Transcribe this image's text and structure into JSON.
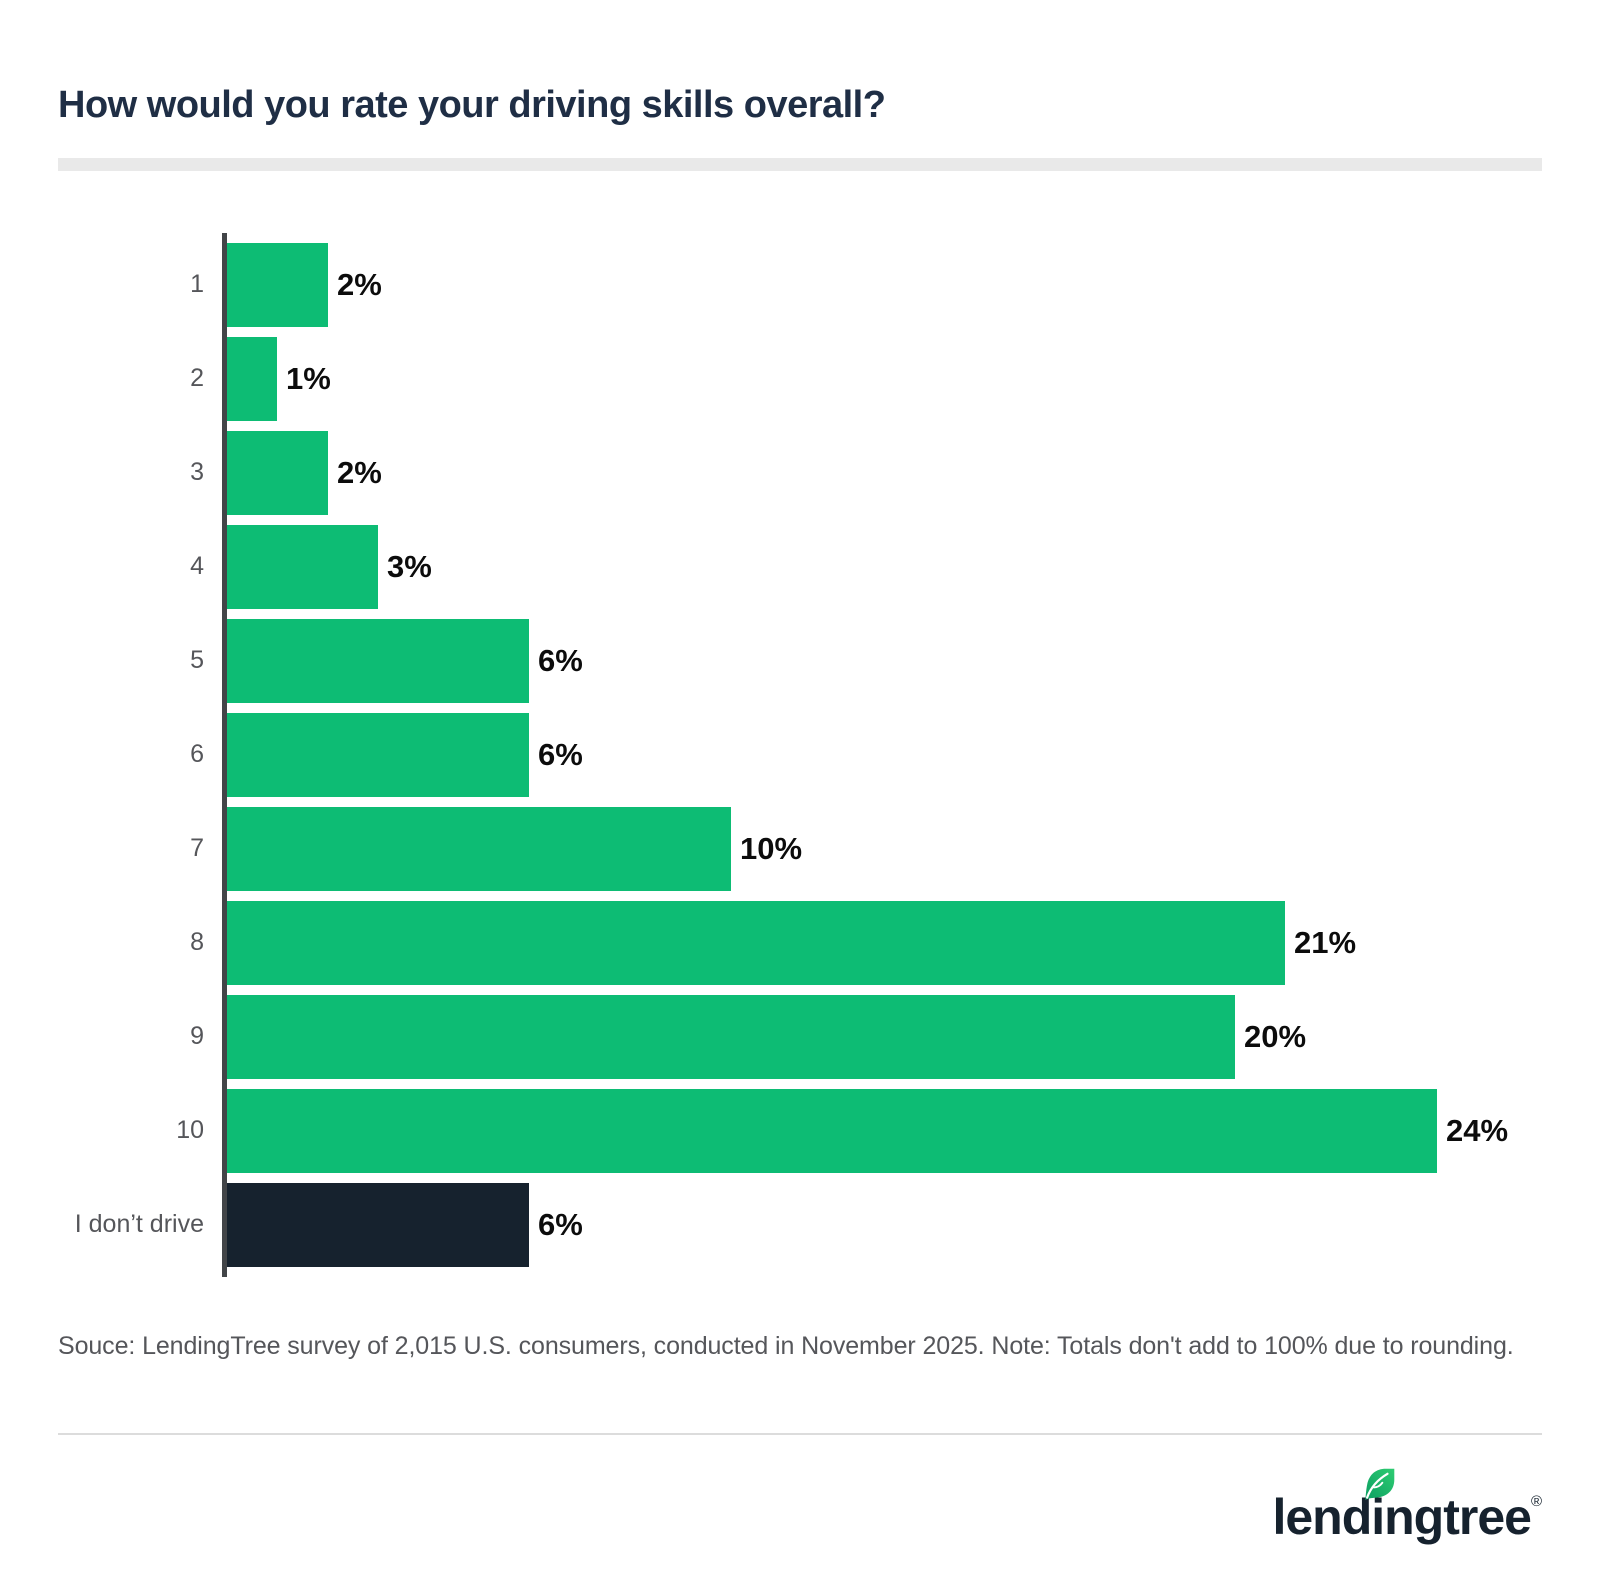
{
  "title": "How would you rate your driving skills overall?",
  "chart_data": {
    "type": "bar",
    "orientation": "horizontal",
    "title": "How would you rate your driving skills overall?",
    "categories": [
      "1",
      "2",
      "3",
      "4",
      "5",
      "6",
      "7",
      "8",
      "9",
      "10",
      "I don’t drive"
    ],
    "values": [
      2,
      1,
      2,
      3,
      6,
      6,
      10,
      21,
      20,
      24,
      6
    ],
    "value_labels": [
      "2%",
      "1%",
      "2%",
      "3%",
      "6%",
      "6%",
      "10%",
      "21%",
      "20%",
      "24%",
      "6%"
    ],
    "unit": "%",
    "xlim": [
      0,
      24
    ],
    "grid": false,
    "legend": "none",
    "value_label_position": "outside-end",
    "bar_color": "#0dbc74",
    "highlight_index": 10,
    "highlight_color": "#16222e"
  },
  "source_note": "Souce: LendingTree survey of 2,015 U.S. consumers, conducted in November 2025. Note: Totals don't add to 100% due to rounding.",
  "logo": {
    "wordmark": "lendingtree",
    "registered_mark": "®",
    "wordmark_color": "#16222e",
    "leaf_gradient": [
      "#0c9e62",
      "#2ecc71"
    ]
  },
  "colors": {
    "background": "#ffffff",
    "title_text": "#1f2e45",
    "category_label": "#55565a",
    "value_label": "#0c0c0c",
    "axis_line": "#424548",
    "title_underline": "#e9e9e9",
    "footer_divider": "#dcdcdc",
    "source_text": "#55565a"
  }
}
